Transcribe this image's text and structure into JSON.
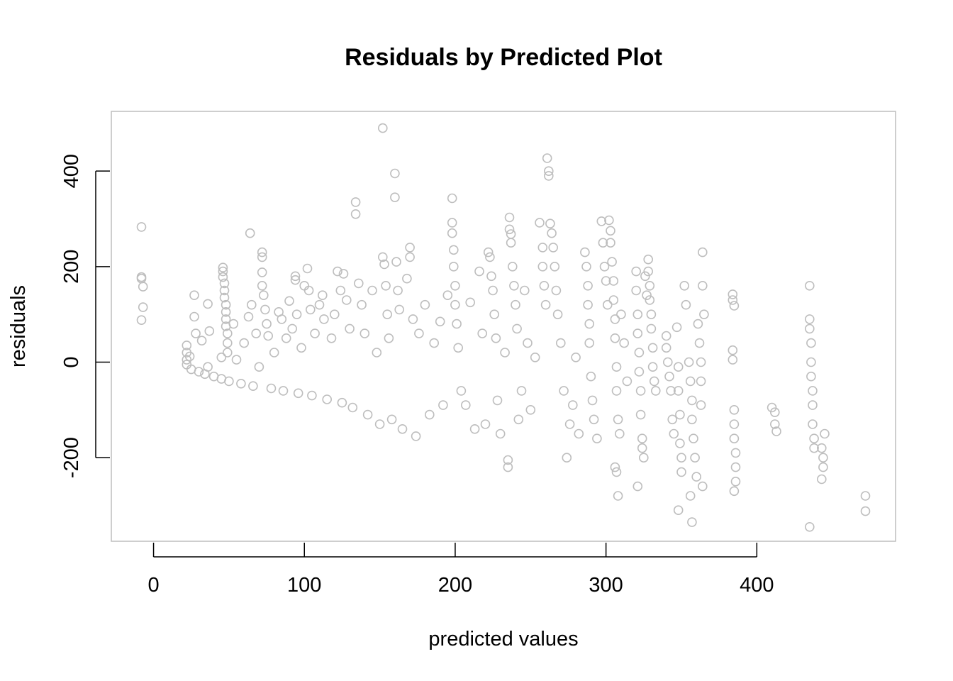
{
  "chart_data": {
    "type": "scatter",
    "title": "Residuals by Predicted Plot",
    "xlabel": "predicted values",
    "ylabel": "residuals",
    "xlim": [
      -28,
      492
    ],
    "ylim": [
      -375,
      525
    ],
    "xticks": [
      0,
      100,
      200,
      300,
      400
    ],
    "yticks": [
      -200,
      0,
      200,
      400
    ],
    "xtick_labels": [
      "0",
      "100",
      "200",
      "300",
      "400"
    ],
    "ytick_labels": [
      "-200",
      "0",
      "200",
      "400"
    ],
    "grid": false,
    "legend": "none",
    "marker": "open-circle",
    "point_color": "#bebebe",
    "series": [
      {
        "points": [
          [
            -8,
            283
          ],
          [
            -8,
            178
          ],
          [
            -8,
            175
          ],
          [
            -7,
            158
          ],
          [
            -7,
            115
          ],
          [
            -8,
            88
          ],
          [
            22,
            35
          ],
          [
            22,
            20
          ],
          [
            22,
            5
          ],
          [
            22,
            -5
          ],
          [
            24,
            12
          ],
          [
            25,
            -15
          ],
          [
            27,
            140
          ],
          [
            27,
            95
          ],
          [
            28,
            60
          ],
          [
            30,
            -20
          ],
          [
            32,
            45
          ],
          [
            34,
            -25
          ],
          [
            36,
            -10
          ],
          [
            37,
            65
          ],
          [
            36,
            122
          ],
          [
            40,
            -30
          ],
          [
            45,
            10
          ],
          [
            45,
            -35
          ],
          [
            46,
            198
          ],
          [
            46,
            190
          ],
          [
            46,
            178
          ],
          [
            47,
            165
          ],
          [
            47,
            150
          ],
          [
            47,
            135
          ],
          [
            48,
            120
          ],
          [
            48,
            105
          ],
          [
            48,
            90
          ],
          [
            48,
            75
          ],
          [
            49,
            60
          ],
          [
            49,
            40
          ],
          [
            49,
            20
          ],
          [
            50,
            -40
          ],
          [
            53,
            80
          ],
          [
            55,
            5
          ],
          [
            58,
            -45
          ],
          [
            60,
            40
          ],
          [
            63,
            95
          ],
          [
            64,
            270
          ],
          [
            65,
            120
          ],
          [
            66,
            -50
          ],
          [
            68,
            60
          ],
          [
            70,
            -10
          ],
          [
            72,
            230
          ],
          [
            72,
            220
          ],
          [
            72,
            188
          ],
          [
            72,
            160
          ],
          [
            73,
            140
          ],
          [
            74,
            110
          ],
          [
            75,
            80
          ],
          [
            76,
            55
          ],
          [
            78,
            -55
          ],
          [
            80,
            20
          ],
          [
            83,
            105
          ],
          [
            85,
            90
          ],
          [
            86,
            -60
          ],
          [
            88,
            50
          ],
          [
            90,
            128
          ],
          [
            92,
            70
          ],
          [
            94,
            180
          ],
          [
            94,
            172
          ],
          [
            95,
            100
          ],
          [
            96,
            -65
          ],
          [
            98,
            30
          ],
          [
            100,
            160
          ],
          [
            102,
            196
          ],
          [
            103,
            150
          ],
          [
            104,
            110
          ],
          [
            105,
            -70
          ],
          [
            107,
            60
          ],
          [
            110,
            120
          ],
          [
            112,
            140
          ],
          [
            113,
            90
          ],
          [
            115,
            -78
          ],
          [
            118,
            50
          ],
          [
            120,
            100
          ],
          [
            122,
            190
          ],
          [
            124,
            150
          ],
          [
            125,
            -85
          ],
          [
            126,
            185
          ],
          [
            128,
            130
          ],
          [
            130,
            70
          ],
          [
            132,
            -95
          ],
          [
            134,
            335
          ],
          [
            134,
            310
          ],
          [
            136,
            165
          ],
          [
            138,
            120
          ],
          [
            140,
            60
          ],
          [
            142,
            -110
          ],
          [
            145,
            150
          ],
          [
            148,
            20
          ],
          [
            150,
            -130
          ],
          [
            152,
            490
          ],
          [
            152,
            220
          ],
          [
            153,
            205
          ],
          [
            154,
            160
          ],
          [
            155,
            100
          ],
          [
            156,
            50
          ],
          [
            158,
            -120
          ],
          [
            160,
            395
          ],
          [
            160,
            345
          ],
          [
            161,
            210
          ],
          [
            162,
            150
          ],
          [
            163,
            110
          ],
          [
            165,
            -140
          ],
          [
            168,
            175
          ],
          [
            170,
            240
          ],
          [
            170,
            220
          ],
          [
            172,
            90
          ],
          [
            174,
            -155
          ],
          [
            176,
            60
          ],
          [
            180,
            120
          ],
          [
            183,
            -110
          ],
          [
            186,
            40
          ],
          [
            190,
            85
          ],
          [
            192,
            -90
          ],
          [
            195,
            140
          ],
          [
            198,
            343
          ],
          [
            198,
            292
          ],
          [
            198,
            270
          ],
          [
            199,
            235
          ],
          [
            199,
            200
          ],
          [
            200,
            160
          ],
          [
            200,
            120
          ],
          [
            201,
            80
          ],
          [
            202,
            30
          ],
          [
            204,
            -60
          ],
          [
            207,
            -90
          ],
          [
            210,
            125
          ],
          [
            213,
            -140
          ],
          [
            216,
            190
          ],
          [
            218,
            60
          ],
          [
            220,
            -130
          ],
          [
            222,
            230
          ],
          [
            223,
            220
          ],
          [
            224,
            180
          ],
          [
            225,
            150
          ],
          [
            226,
            100
          ],
          [
            227,
            50
          ],
          [
            228,
            -80
          ],
          [
            230,
            -150
          ],
          [
            233,
            20
          ],
          [
            235,
            -205
          ],
          [
            235,
            -220
          ],
          [
            236,
            303
          ],
          [
            236,
            278
          ],
          [
            237,
            268
          ],
          [
            237,
            250
          ],
          [
            238,
            200
          ],
          [
            239,
            160
          ],
          [
            240,
            120
          ],
          [
            241,
            70
          ],
          [
            242,
            -120
          ],
          [
            244,
            -60
          ],
          [
            246,
            150
          ],
          [
            248,
            40
          ],
          [
            250,
            -100
          ],
          [
            253,
            10
          ],
          [
            256,
            292
          ],
          [
            258,
            240
          ],
          [
            258,
            200
          ],
          [
            259,
            160
          ],
          [
            260,
            120
          ],
          [
            261,
            427
          ],
          [
            262,
            400
          ],
          [
            262,
            390
          ],
          [
            263,
            290
          ],
          [
            264,
            270
          ],
          [
            265,
            240
          ],
          [
            266,
            200
          ],
          [
            267,
            150
          ],
          [
            268,
            100
          ],
          [
            270,
            40
          ],
          [
            272,
            -60
          ],
          [
            274,
            -200
          ],
          [
            276,
            -130
          ],
          [
            278,
            -90
          ],
          [
            280,
            10
          ],
          [
            282,
            -150
          ],
          [
            286,
            230
          ],
          [
            287,
            200
          ],
          [
            288,
            160
          ],
          [
            288,
            120
          ],
          [
            289,
            80
          ],
          [
            289,
            40
          ],
          [
            290,
            -30
          ],
          [
            291,
            -80
          ],
          [
            292,
            -120
          ],
          [
            294,
            -160
          ],
          [
            297,
            295
          ],
          [
            298,
            250
          ],
          [
            299,
            200
          ],
          [
            300,
            170
          ],
          [
            301,
            120
          ],
          [
            302,
            297
          ],
          [
            303,
            275
          ],
          [
            303,
            250
          ],
          [
            304,
            210
          ],
          [
            305,
            170
          ],
          [
            305,
            130
          ],
          [
            306,
            90
          ],
          [
            306,
            50
          ],
          [
            307,
            -10
          ],
          [
            307,
            -60
          ],
          [
            308,
            -120
          ],
          [
            309,
            -150
          ],
          [
            306,
            -220
          ],
          [
            307,
            -230
          ],
          [
            308,
            -280
          ],
          [
            310,
            100
          ],
          [
            312,
            40
          ],
          [
            314,
            -40
          ],
          [
            320,
            190
          ],
          [
            320,
            150
          ],
          [
            321,
            100
          ],
          [
            321,
            60
          ],
          [
            322,
            20
          ],
          [
            322,
            -20
          ],
          [
            323,
            -60
          ],
          [
            323,
            -110
          ],
          [
            324,
            -160
          ],
          [
            324,
            -180
          ],
          [
            325,
            -200
          ],
          [
            321,
            -260
          ],
          [
            326,
            180
          ],
          [
            327,
            140
          ],
          [
            328,
            215
          ],
          [
            328,
            190
          ],
          [
            329,
            160
          ],
          [
            329,
            130
          ],
          [
            330,
            100
          ],
          [
            330,
            70
          ],
          [
            331,
            30
          ],
          [
            331,
            -10
          ],
          [
            332,
            -40
          ],
          [
            333,
            -60
          ],
          [
            340,
            55
          ],
          [
            340,
            30
          ],
          [
            341,
            0
          ],
          [
            342,
            -30
          ],
          [
            343,
            -60
          ],
          [
            344,
            -120
          ],
          [
            345,
            -150
          ],
          [
            347,
            73
          ],
          [
            348,
            -10
          ],
          [
            348,
            -60
          ],
          [
            349,
            -110
          ],
          [
            349,
            -170
          ],
          [
            350,
            -200
          ],
          [
            350,
            -230
          ],
          [
            348,
            -310
          ],
          [
            352,
            160
          ],
          [
            353,
            120
          ],
          [
            355,
            0
          ],
          [
            356,
            -40
          ],
          [
            357,
            -80
          ],
          [
            357,
            -120
          ],
          [
            358,
            -160
          ],
          [
            359,
            -200
          ],
          [
            360,
            -240
          ],
          [
            356,
            -280
          ],
          [
            357,
            -335
          ],
          [
            361,
            80
          ],
          [
            362,
            40
          ],
          [
            363,
            0
          ],
          [
            363,
            -40
          ],
          [
            364,
            160
          ],
          [
            364,
            230
          ],
          [
            365,
            100
          ],
          [
            363,
            -90
          ],
          [
            364,
            -260
          ],
          [
            384,
            142
          ],
          [
            384,
            130
          ],
          [
            385,
            118
          ],
          [
            384,
            25
          ],
          [
            384,
            5
          ],
          [
            385,
            -100
          ],
          [
            385,
            -130
          ],
          [
            385,
            -160
          ],
          [
            386,
            -190
          ],
          [
            386,
            -220
          ],
          [
            386,
            -250
          ],
          [
            385,
            -270
          ],
          [
            410,
            -95
          ],
          [
            412,
            -105
          ],
          [
            412,
            -130
          ],
          [
            413,
            -145
          ],
          [
            435,
            160
          ],
          [
            435,
            90
          ],
          [
            435,
            70
          ],
          [
            436,
            40
          ],
          [
            436,
            0
          ],
          [
            436,
            -30
          ],
          [
            437,
            -60
          ],
          [
            437,
            -90
          ],
          [
            437,
            -130
          ],
          [
            438,
            -160
          ],
          [
            438,
            -180
          ],
          [
            443,
            -180
          ],
          [
            444,
            -200
          ],
          [
            444,
            -220
          ],
          [
            443,
            -245
          ],
          [
            445,
            -150
          ],
          [
            435,
            -345
          ],
          [
            472,
            -280
          ],
          [
            472,
            -312
          ]
        ]
      }
    ]
  }
}
